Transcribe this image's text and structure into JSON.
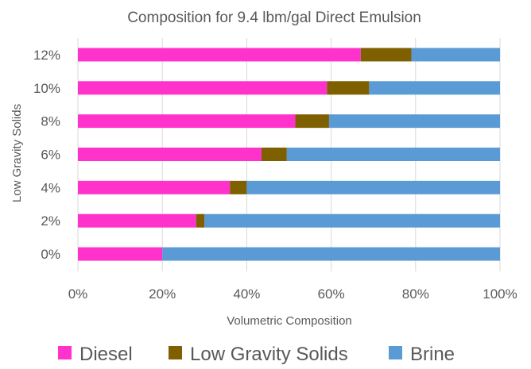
{
  "chart_data": {
    "type": "bar",
    "orientation": "horizontal",
    "stacked": "percent",
    "title": "Composition for 9.4 lbm/gal Direct Emulsion",
    "xlabel": "Volumetric Composition",
    "ylabel": "Low Gravity Solids",
    "categories": [
      "0%",
      "2%",
      "4%",
      "6%",
      "8%",
      "10%",
      "12%"
    ],
    "xlim": [
      0,
      100
    ],
    "x_ticks": [
      "0%",
      "20%",
      "40%",
      "60%",
      "80%",
      "100%"
    ],
    "grid": "vertical",
    "legend_position": "bottom",
    "series": [
      {
        "name": "Diesel",
        "color": "#ff33cc",
        "values": [
          20,
          28,
          36,
          43.5,
          51.5,
          59,
          67
        ]
      },
      {
        "name": "Low Gravity Solids",
        "color": "#7f6000",
        "values": [
          0,
          2,
          4,
          6,
          8,
          10,
          12
        ]
      },
      {
        "name": "Brine",
        "color": "#5b9bd5",
        "values": [
          80,
          70,
          60,
          50.5,
          40.5,
          31,
          21
        ]
      }
    ]
  }
}
